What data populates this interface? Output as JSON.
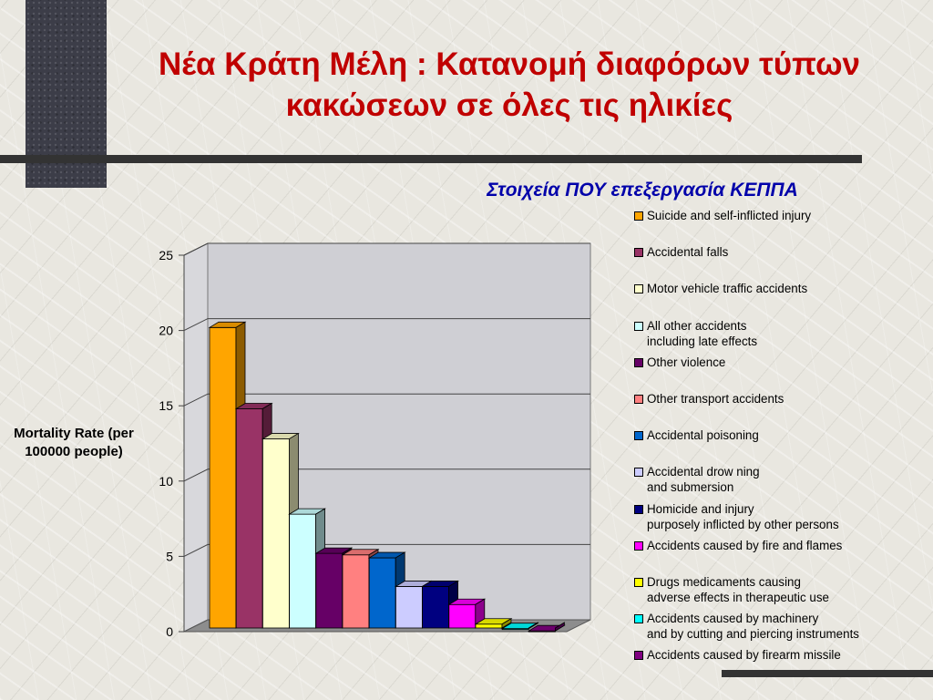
{
  "title": "Νέα Κράτη Μέλη : Κατανομή διαφόρων τύπων κακώσεων σε όλες τις ηλικίες",
  "subtitle": "Στοιχεία ΠΟΥ επεξεργασία ΚΕΠΠΑ",
  "chart_data": {
    "type": "bar",
    "ylabel": "Mortality Rate (per 100000 people)",
    "xlabel": "",
    "ylim": [
      0,
      25
    ],
    "yticks": [
      0,
      5,
      10,
      15,
      20,
      25
    ],
    "grid": true,
    "three_d": true,
    "legend_position": "right",
    "series": [
      {
        "name": "Suicide and self-inflicted injury",
        "value": 20.2,
        "color": "#ffa500"
      },
      {
        "name": "Accidental falls",
        "value": 14.8,
        "color": "#993366"
      },
      {
        "name": "Motor vehicle traffic accidents",
        "value": 12.8,
        "color": "#ffffcc"
      },
      {
        "name": "All other accidents\nincluding late effects",
        "value": 7.8,
        "color": "#ccffff"
      },
      {
        "name": "Other violence",
        "value": 5.2,
        "color": "#660066"
      },
      {
        "name": "Other transport accidents",
        "value": 5.1,
        "color": "#ff8080"
      },
      {
        "name": "Accidental poisoning",
        "value": 4.9,
        "color": "#0066cc"
      },
      {
        "name": "Accidental drow ning\nand submersion",
        "value": 3.0,
        "color": "#ccccff"
      },
      {
        "name": "Homicide and injury\npurposely inflicted by other persons",
        "value": 3.0,
        "color": "#000080"
      },
      {
        "name": "Accidents caused by fire and flames",
        "value": 1.8,
        "color": "#ff00ff"
      },
      {
        "name": "Drugs medicaments causing\nadverse effects in therapeutic use",
        "value": 0.5,
        "color": "#ffff00"
      },
      {
        "name": "Accidents caused by machinery\nand by cutting and piercing instruments",
        "value": 0.2,
        "color": "#00ffff"
      },
      {
        "name": "Accidents caused by firearm missile",
        "value": 0.05,
        "color": "#800080"
      }
    ]
  }
}
